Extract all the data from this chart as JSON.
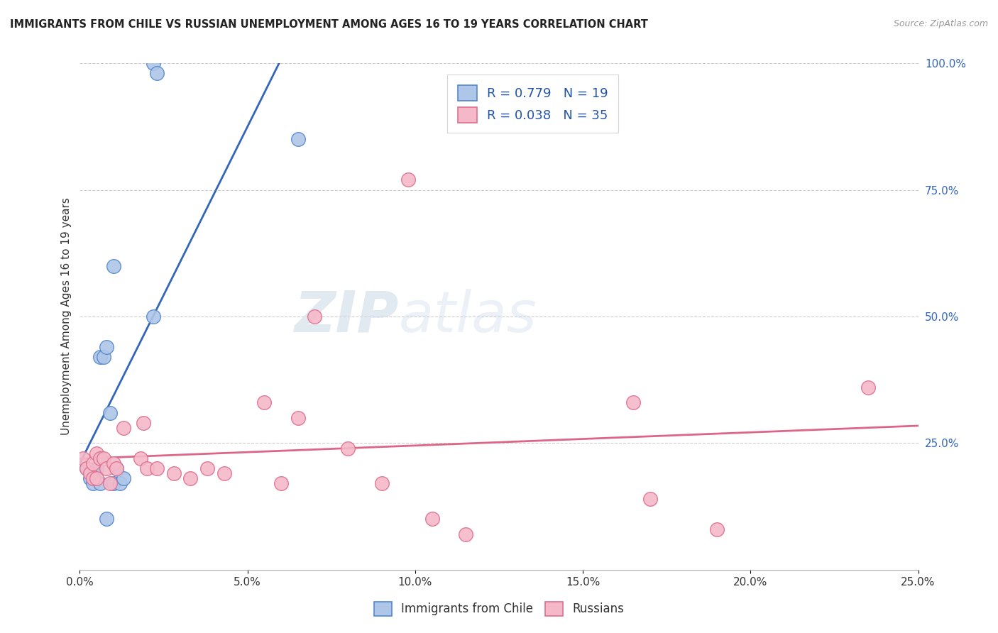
{
  "title": "IMMIGRANTS FROM CHILE VS RUSSIAN UNEMPLOYMENT AMONG AGES 16 TO 19 YEARS CORRELATION CHART",
  "source": "Source: ZipAtlas.com",
  "ylabel": "Unemployment Among Ages 16 to 19 years",
  "ylabel_right_ticks": [
    "100.0%",
    "75.0%",
    "50.0%",
    "25.0%"
  ],
  "ylabel_right_vals": [
    1.0,
    0.75,
    0.5,
    0.25
  ],
  "watermark_zip": "ZIP",
  "watermark_atlas": "atlas",
  "legend_line1": "R = 0.779   N = 19",
  "legend_line2": "R = 0.038   N = 35",
  "chile_color": "#aec6e8",
  "chile_edge": "#5588cc",
  "russian_color": "#f5b8c8",
  "russian_edge": "#dd7090",
  "trendline_chile_color": "#3366bb",
  "trendline_russian_color": "#dd6688",
  "xlim": [
    0.0,
    0.25
  ],
  "ylim": [
    -0.02,
    1.08
  ],
  "plot_ylim": [
    0.0,
    1.0
  ],
  "chile_x": [
    0.002,
    0.003,
    0.004,
    0.005,
    0.006,
    0.006,
    0.007,
    0.008,
    0.008,
    0.009,
    0.01,
    0.01,
    0.011,
    0.012,
    0.013,
    0.022,
    0.065,
    0.022,
    0.023
  ],
  "chile_y": [
    0.2,
    0.18,
    0.17,
    0.2,
    0.17,
    0.42,
    0.42,
    0.44,
    0.1,
    0.31,
    0.6,
    0.17,
    0.2,
    0.17,
    0.18,
    0.5,
    0.85,
    1.0,
    0.98
  ],
  "russian_x": [
    0.001,
    0.002,
    0.003,
    0.004,
    0.004,
    0.005,
    0.005,
    0.006,
    0.007,
    0.008,
    0.009,
    0.01,
    0.011,
    0.013,
    0.018,
    0.019,
    0.02,
    0.023,
    0.028,
    0.033,
    0.038,
    0.043,
    0.055,
    0.06,
    0.065,
    0.07,
    0.08,
    0.09,
    0.098,
    0.105,
    0.115,
    0.165,
    0.17,
    0.19,
    0.235
  ],
  "russian_y": [
    0.22,
    0.2,
    0.19,
    0.18,
    0.21,
    0.18,
    0.23,
    0.22,
    0.22,
    0.2,
    0.17,
    0.21,
    0.2,
    0.28,
    0.22,
    0.29,
    0.2,
    0.2,
    0.19,
    0.18,
    0.2,
    0.19,
    0.33,
    0.17,
    0.3,
    0.5,
    0.24,
    0.17,
    0.77,
    0.1,
    0.07,
    0.33,
    0.14,
    0.08,
    0.36
  ],
  "background_color": "#ffffff",
  "grid_color": "#cccccc",
  "xticks": [
    0.0,
    0.05,
    0.1,
    0.15,
    0.2,
    0.25
  ],
  "xtick_labels": [
    "0.0%",
    "5.0%",
    "10.0%",
    "15.0%",
    "20.0%",
    "25.0%"
  ]
}
